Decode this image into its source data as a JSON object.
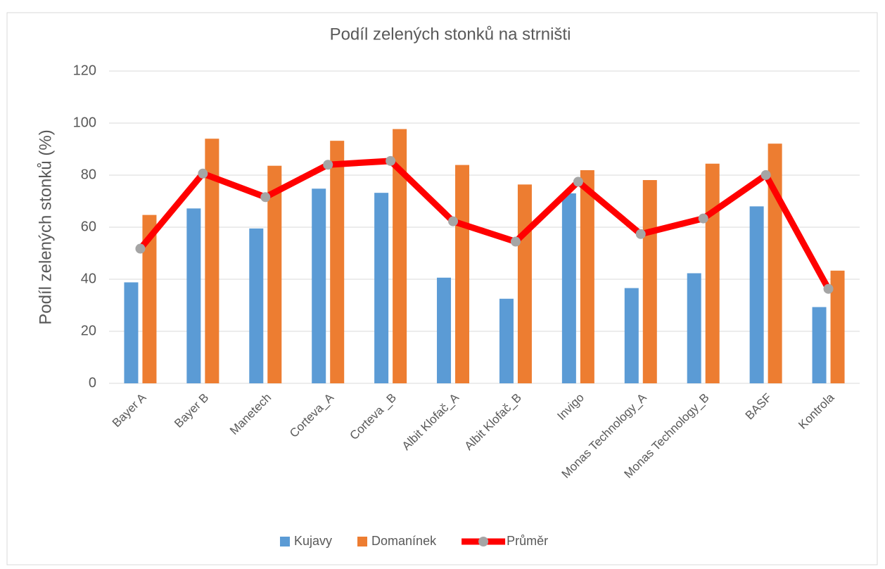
{
  "chart_data": {
    "type": "bar_line",
    "title": "Podíl zelených stonků na strništi",
    "y_label": "Podíl zelených stonků (%)",
    "categories": [
      "Bayer A",
      "Bayer B",
      "Manetech",
      "Corteva_A",
      "Corteva _B",
      "Albit Klofač_A",
      "Albit Klofač_B",
      "Invigo",
      "Monas Technology_A",
      "Monas Technology_B",
      "BASF",
      "Kontrola"
    ],
    "series": [
      {
        "name": "Kujavy",
        "type": "bar",
        "color": "#5b9bd5",
        "values": [
          38.8,
          67.2,
          59.5,
          74.8,
          73.2,
          40.6,
          32.5,
          73.0,
          36.6,
          42.3,
          68.0,
          29.3
        ]
      },
      {
        "name": "Domanínek",
        "type": "bar",
        "color": "#ed7d31",
        "values": [
          64.7,
          94.0,
          83.6,
          93.2,
          97.7,
          83.9,
          76.4,
          81.9,
          78.1,
          84.4,
          92.1,
          43.3
        ]
      },
      {
        "name": "Průměr",
        "type": "line",
        "color": "#ff0000",
        "marker_color": "#a5a5a5",
        "values": [
          51.75,
          80.6,
          71.55,
          84.0,
          85.45,
          62.25,
          54.45,
          77.45,
          57.35,
          63.35,
          80.05,
          36.3
        ]
      }
    ],
    "ylim": [
      0,
      120
    ],
    "yticks": [
      0,
      20,
      40,
      60,
      80,
      100,
      120
    ],
    "grid": true,
    "legend": "bottom"
  }
}
